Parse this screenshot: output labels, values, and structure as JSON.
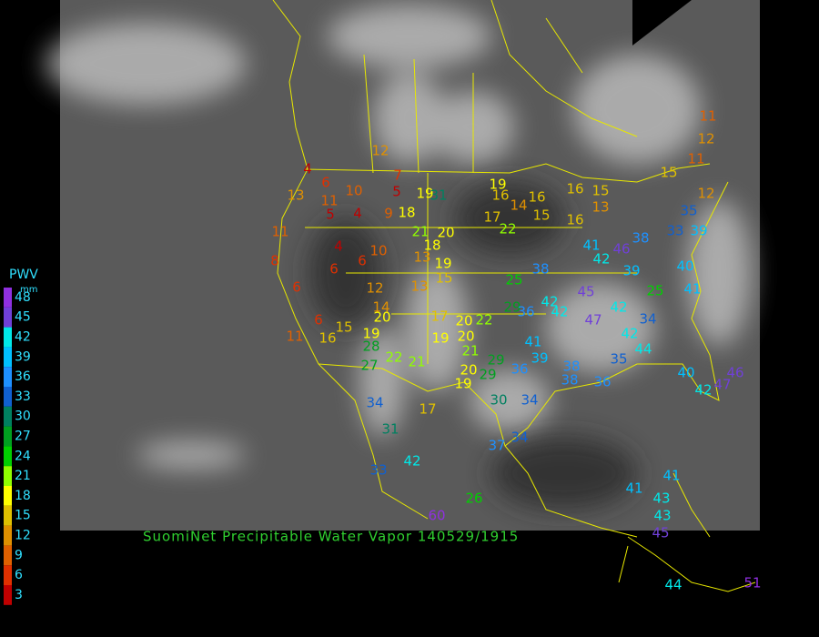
{
  "caption": "SuomiNet Precipitable Water Vapor 140529/1915",
  "legend": {
    "title": "PWV",
    "unit": "mm",
    "items": [
      {
        "label": 48,
        "color": "#9030e0"
      },
      {
        "label": 45,
        "color": "#7040d8"
      },
      {
        "label": 42,
        "color": "#00e8e8"
      },
      {
        "label": 39,
        "color": "#00c0ff"
      },
      {
        "label": 36,
        "color": "#1e90ff"
      },
      {
        "label": 33,
        "color": "#1060d0"
      },
      {
        "label": 30,
        "color": "#008060"
      },
      {
        "label": 27,
        "color": "#00a020"
      },
      {
        "label": 24,
        "color": "#00d000"
      },
      {
        "label": 21,
        "color": "#90ff00"
      },
      {
        "label": 18,
        "color": "#ffff00"
      },
      {
        "label": 15,
        "color": "#e0c000"
      },
      {
        "label": 12,
        "color": "#e09000"
      },
      {
        "label": 9,
        "color": "#e06000"
      },
      {
        "label": 6,
        "color": "#e03000"
      },
      {
        "label": 3,
        "color": "#c00000"
      }
    ]
  },
  "stations": [
    12,
    4,
    6,
    11,
    10,
    7,
    5,
    13,
    19,
    31,
    19,
    16,
    14,
    16,
    16,
    15,
    13,
    15,
    16,
    17,
    22,
    9,
    18,
    21,
    20,
    18,
    19,
    15,
    13,
    10,
    6,
    6,
    4,
    4,
    5,
    11,
    8,
    6,
    6,
    11,
    15,
    16,
    19,
    12,
    14,
    20,
    13,
    17,
    20,
    22,
    19,
    20,
    21,
    28,
    22,
    27,
    21,
    20,
    19,
    25,
    29,
    36,
    42,
    42,
    38,
    47,
    45,
    42,
    41,
    46,
    39,
    38,
    33,
    39,
    40,
    41,
    25,
    42,
    34,
    42,
    44,
    40,
    42,
    47,
    46,
    35,
    36,
    38,
    38,
    39,
    41,
    29,
    29,
    36,
    30,
    34,
    37,
    34,
    17,
    34,
    31,
    42,
    33,
    26,
    60,
    41,
    41,
    43,
    43,
    45,
    44,
    51,
    11,
    12,
    15,
    11,
    12,
    35
  ]
}
